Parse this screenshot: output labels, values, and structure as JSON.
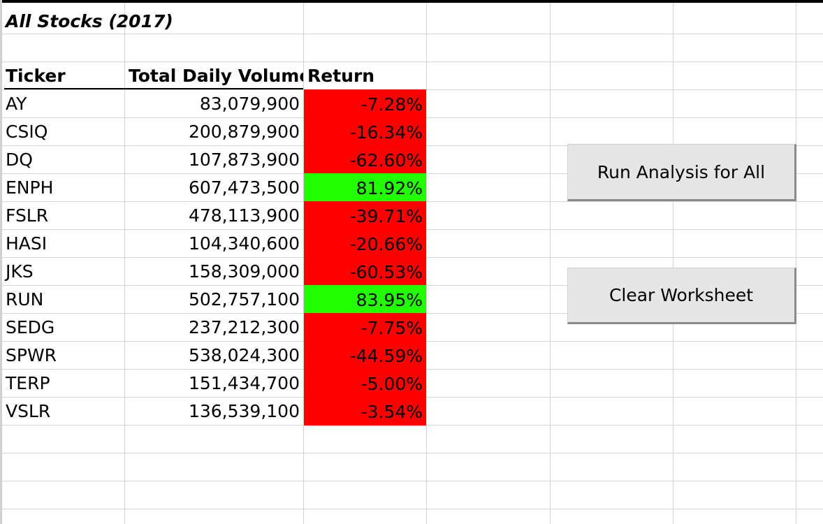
{
  "sheet_title": "All Stocks (2017)",
  "headers": {
    "ticker": "Ticker",
    "volume": "Total Daily Volume",
    "return": "Return"
  },
  "rows": [
    {
      "ticker": "AY",
      "volume": "83,079,900",
      "return": "-7.28%",
      "positive": false
    },
    {
      "ticker": "CSIQ",
      "volume": "200,879,900",
      "return": "-16.34%",
      "positive": false
    },
    {
      "ticker": "DQ",
      "volume": "107,873,900",
      "return": "-62.60%",
      "positive": false
    },
    {
      "ticker": "ENPH",
      "volume": "607,473,500",
      "return": "81.92%",
      "positive": true
    },
    {
      "ticker": "FSLR",
      "volume": "478,113,900",
      "return": "-39.71%",
      "positive": false
    },
    {
      "ticker": "HASI",
      "volume": "104,340,600",
      "return": "-20.66%",
      "positive": false
    },
    {
      "ticker": "JKS",
      "volume": "158,309,000",
      "return": "-60.53%",
      "positive": false
    },
    {
      "ticker": "RUN",
      "volume": "502,757,100",
      "return": "83.95%",
      "positive": true
    },
    {
      "ticker": "SEDG",
      "volume": "237,212,300",
      "return": "-7.75%",
      "positive": false
    },
    {
      "ticker": "SPWR",
      "volume": "538,024,300",
      "return": "-44.59%",
      "positive": false
    },
    {
      "ticker": "TERP",
      "volume": "151,434,700",
      "return": "-5.00%",
      "positive": false
    },
    {
      "ticker": "VSLR",
      "volume": "136,539,100",
      "return": "-3.54%",
      "positive": false
    }
  ],
  "buttons": {
    "run_analysis": "Run Analysis for All",
    "clear": "Clear Worksheet"
  },
  "colors": {
    "negative_fill": "#ff0000",
    "positive_fill": "#22ff00",
    "gridline": "#d4d4d4"
  }
}
